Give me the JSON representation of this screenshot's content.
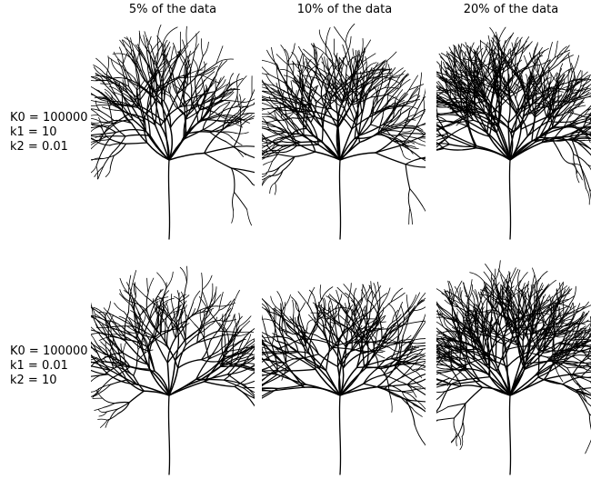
{
  "columns": [
    "5% of the data",
    "10% of the data",
    "20% of the data"
  ],
  "rows": [
    {
      "lines": [
        "K0 = 100000",
        "k1 = 10",
        "k2 = 0.01"
      ]
    },
    {
      "lines": [
        "K0 = 100000",
        "k1 = 0.01",
        "k2 = 10"
      ]
    }
  ],
  "panels": [
    {
      "row": 0,
      "col": 0,
      "fraction": 0.05
    },
    {
      "row": 0,
      "col": 1,
      "fraction": 0.1
    },
    {
      "row": 0,
      "col": 2,
      "fraction": 0.2
    },
    {
      "row": 1,
      "col": 0,
      "fraction": 0.05
    },
    {
      "row": 1,
      "col": 1,
      "fraction": 0.1
    },
    {
      "row": 1,
      "col": 2,
      "fraction": 0.2
    }
  ],
  "colors": {
    "branch": "#000000",
    "background": "#ffffff"
  }
}
